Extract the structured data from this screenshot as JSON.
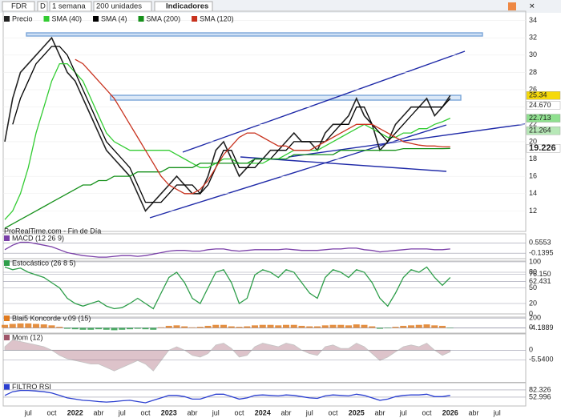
{
  "toolbar": {
    "symbol": "FDR",
    "period": "D",
    "interval": "1 semana",
    "units": "200 unidades",
    "indicators": "Indicadores"
  },
  "chart_data": [
    {
      "type": "line",
      "note": "ProRealTime.com - Fin de Día",
      "categories": [
        null,
        null,
        null,
        "jul",
        null,
        null,
        "oct",
        null,
        null,
        "2022",
        null,
        null,
        "abr",
        null,
        null,
        "jul",
        null,
        null,
        "oct",
        null,
        null,
        "2023",
        null,
        null,
        "abr",
        null,
        null,
        "jul",
        null,
        null,
        "oct",
        null,
        null,
        "2024",
        null,
        null,
        "abr",
        null,
        null,
        "jul",
        null,
        null,
        "oct",
        null,
        null,
        "2025",
        null,
        null,
        "abr",
        null,
        null,
        "jul",
        null,
        null,
        "oct",
        null,
        null,
        "2026",
        null,
        null,
        "abr",
        null,
        null,
        "jul"
      ],
      "ylim": [
        10,
        34.7
      ],
      "yticks": [
        12,
        14,
        16,
        18,
        20,
        22,
        24,
        26,
        28,
        30,
        32,
        34
      ],
      "last_values": [
        {
          "value": 25.34,
          "color": "#f5d90a"
        },
        {
          "value": 24.67,
          "label": "24.670",
          "color": "#ffffff"
        },
        {
          "value": 22.713,
          "color": "#8fe08f"
        },
        {
          "value": 21.264,
          "color": "#b7e8b7"
        },
        {
          "value": 19.226,
          "color": "#ffffff"
        }
      ],
      "series": [
        {
          "name": "Precio",
          "color": "#222222",
          "values": [
            20,
            25,
            28,
            29,
            30,
            31,
            32,
            30,
            28,
            27,
            25,
            23,
            21,
            19,
            18,
            17,
            16,
            14,
            12,
            13,
            14,
            15,
            16,
            15,
            14,
            14,
            16,
            19,
            20,
            18,
            16,
            17,
            18,
            18,
            19,
            19,
            20,
            21,
            20,
            20,
            19,
            21,
            22,
            22,
            23,
            25,
            23,
            22,
            19,
            20,
            22,
            23,
            24,
            24,
            25,
            23,
            24,
            25.34,
            null,
            null,
            null,
            null,
            null,
            null
          ]
        },
        {
          "name": "SMA (40)",
          "color": "#33cc33",
          "values": [
            11,
            12,
            14,
            17,
            21,
            24,
            27,
            29,
            29,
            28,
            27,
            25,
            23,
            21,
            20,
            19.5,
            19,
            19,
            19,
            19,
            19,
            19,
            18.5,
            18,
            17.5,
            17,
            17,
            17.5,
            18,
            18,
            17.5,
            17.5,
            17.5,
            17.5,
            18,
            18,
            18.5,
            19,
            19,
            19,
            19,
            19.5,
            20,
            20.5,
            21,
            21.5,
            22,
            21.5,
            21,
            20.5,
            20.5,
            21,
            21,
            21.5,
            21.5,
            22,
            22.3,
            22.713,
            null,
            null,
            null,
            null,
            null,
            null
          ]
        },
        {
          "name": "SMA (4)",
          "color": "#000000",
          "values": [
            null,
            22,
            25,
            27,
            29,
            30,
            31,
            31,
            30,
            28,
            26,
            24,
            22,
            20,
            19,
            18,
            17,
            15,
            13,
            13,
            13,
            14,
            15,
            15,
            15,
            14,
            15,
            17,
            19,
            19,
            17,
            17,
            17,
            18,
            18,
            19,
            19,
            20,
            20,
            20,
            20,
            20,
            21,
            22,
            22,
            24,
            24,
            22,
            21,
            20,
            21,
            22,
            23,
            24,
            24,
            24,
            24,
            25,
            null,
            null,
            null,
            null,
            null,
            null
          ]
        },
        {
          "name": "SMA (200)",
          "color": "#15901a",
          "values": [
            10,
            10.5,
            11,
            11.5,
            12,
            12.5,
            13,
            13.5,
            14,
            14.5,
            15,
            15,
            15.5,
            15.5,
            16,
            16,
            16,
            16.5,
            16.5,
            16.5,
            16.5,
            17,
            17,
            17,
            17,
            17.5,
            17.5,
            17.5,
            17.5,
            17.5,
            17.5,
            17.5,
            18,
            18,
            18,
            18,
            18,
            18.5,
            18.5,
            18.5,
            18.5,
            18.5,
            18.5,
            19,
            19,
            19,
            19,
            19,
            19,
            19,
            19,
            19.2,
            19.2,
            19.2,
            19.2,
            19.2,
            19.2,
            19.226,
            null,
            null,
            null,
            null,
            null,
            null
          ]
        },
        {
          "name": "SMA (120)",
          "color": "#c8321e",
          "values": [
            null,
            null,
            null,
            null,
            null,
            null,
            null,
            null,
            null,
            29.5,
            29,
            28,
            27,
            26,
            25,
            23.5,
            22,
            20.5,
            19,
            17.5,
            16,
            15,
            14.5,
            14,
            14,
            14.5,
            15.5,
            17,
            18.5,
            19.5,
            20.5,
            21,
            21,
            20.5,
            20,
            19.5,
            19.5,
            19,
            19,
            19,
            19.5,
            20,
            20.5,
            21,
            21.5,
            22,
            22,
            22,
            21.5,
            21,
            20.5,
            20,
            19.8,
            19.6,
            19.5,
            19.5,
            19.4,
            19.4,
            null,
            null,
            null,
            null,
            null,
            null
          ]
        }
      ]
    },
    {
      "type": "line",
      "title": "MACD (12 26 9)",
      "ylim": [
        -0.45,
        0.95
      ],
      "yticks": [
        0.5553,
        -0.1395
      ],
      "series": [
        {
          "color": "#7a3fa8",
          "values": [
            0.1,
            0.4,
            0.6,
            0.6,
            0.5,
            0.4,
            0.3,
            0.1,
            -0.1,
            -0.2,
            -0.3,
            -0.35,
            -0.4,
            -0.4,
            -0.35,
            -0.3,
            -0.3,
            -0.35,
            -0.3,
            -0.2,
            -0.1,
            0,
            0.05,
            0.05,
            0,
            0,
            0.1,
            0.15,
            0.15,
            0.05,
            0,
            0.05,
            0.1,
            0.1,
            0.1,
            0.1,
            0.15,
            0.1,
            0.05,
            0.05,
            0.05,
            0.1,
            0.15,
            0.15,
            0.2,
            0.2,
            0.1,
            0.05,
            -0.05,
            0,
            0.05,
            0.1,
            0.15,
            0.15,
            0.15,
            0.1,
            0.1,
            0.15,
            null,
            null,
            null,
            null,
            null,
            null
          ]
        }
      ]
    },
    {
      "type": "line",
      "title": "Estocástico (26 8 5)",
      "ylim": [
        0,
        100
      ],
      "yticks": [
        0,
        20,
        50,
        80,
        100,
        {
          "value": 76.15,
          "label": "76.150"
        },
        62.431
      ],
      "series": [
        {
          "color": "#2e9e4a",
          "values": [
            90,
            85,
            88,
            80,
            75,
            70,
            60,
            50,
            30,
            20,
            15,
            20,
            25,
            15,
            10,
            12,
            20,
            30,
            20,
            10,
            40,
            70,
            80,
            60,
            30,
            20,
            50,
            80,
            85,
            60,
            20,
            30,
            75,
            85,
            80,
            70,
            85,
            80,
            60,
            40,
            30,
            70,
            85,
            80,
            70,
            85,
            80,
            60,
            30,
            15,
            40,
            70,
            85,
            80,
            90,
            70,
            55,
            70,
            null,
            null,
            null,
            null,
            null,
            null
          ]
        }
      ]
    },
    {
      "type": "bar",
      "title": "Blai5 Koncorde v.09 (15)",
      "ylim": [
        -60,
        220
      ],
      "yticks": [
        200,
        0,
        -4.1889
      ],
      "series": [
        {
          "color": "#e07b1f",
          "values": [
            60,
            80,
            90,
            90,
            80,
            70,
            50,
            20,
            -20,
            -30,
            -40,
            -40,
            -30,
            -40,
            -50,
            -40,
            -30,
            -20,
            -30,
            -40,
            10,
            40,
            50,
            30,
            10,
            20,
            40,
            60,
            60,
            30,
            20,
            30,
            50,
            60,
            60,
            50,
            60,
            60,
            40,
            30,
            30,
            50,
            60,
            60,
            50,
            70,
            60,
            30,
            -20,
            -10,
            20,
            40,
            50,
            60,
            70,
            50,
            40,
            -4.1889,
            null,
            null,
            null,
            null,
            null,
            null
          ]
        }
      ]
    },
    {
      "type": "area",
      "title": "Mom (12)",
      "ylim": [
        -17,
        8
      ],
      "yticks": [
        0,
        {
          "value": -5.54,
          "label": "-5.5400"
        }
      ],
      "series": [
        {
          "color": "#a0566a",
          "values": [
            2,
            6,
            5,
            4,
            3,
            2,
            0,
            -3,
            -5,
            -6,
            -7,
            -8,
            -8,
            -10,
            -12,
            -10,
            -8,
            -6,
            -8,
            -12,
            -6,
            0,
            2,
            0,
            -3,
            -4,
            -2,
            3,
            4,
            1,
            -4,
            -3,
            2,
            4,
            3,
            2,
            4,
            3,
            0,
            -2,
            -3,
            2,
            3,
            1,
            1,
            4,
            2,
            -2,
            -6,
            -4,
            -1,
            2,
            3,
            2,
            4,
            0,
            -3,
            -1,
            null,
            null,
            null,
            null,
            null,
            null
          ]
        }
      ]
    },
    {
      "type": "line",
      "title": "FILTRO RSI",
      "ylim": [
        30,
        100
      ],
      "yticks": [
        82.326,
        52.996
      ],
      "series": [
        {
          "color": "#2b3fd0",
          "values": [
            60,
            75,
            80,
            80,
            78,
            75,
            70,
            60,
            50,
            45,
            40,
            38,
            35,
            33,
            35,
            38,
            40,
            35,
            30,
            40,
            50,
            60,
            60,
            55,
            45,
            45,
            55,
            65,
            65,
            55,
            45,
            50,
            60,
            62,
            60,
            58,
            62,
            60,
            55,
            50,
            48,
            58,
            62,
            60,
            58,
            65,
            60,
            50,
            40,
            45,
            55,
            60,
            62,
            62,
            65,
            55,
            55,
            60,
            null,
            null,
            null,
            null,
            null,
            null
          ]
        }
      ]
    }
  ]
}
